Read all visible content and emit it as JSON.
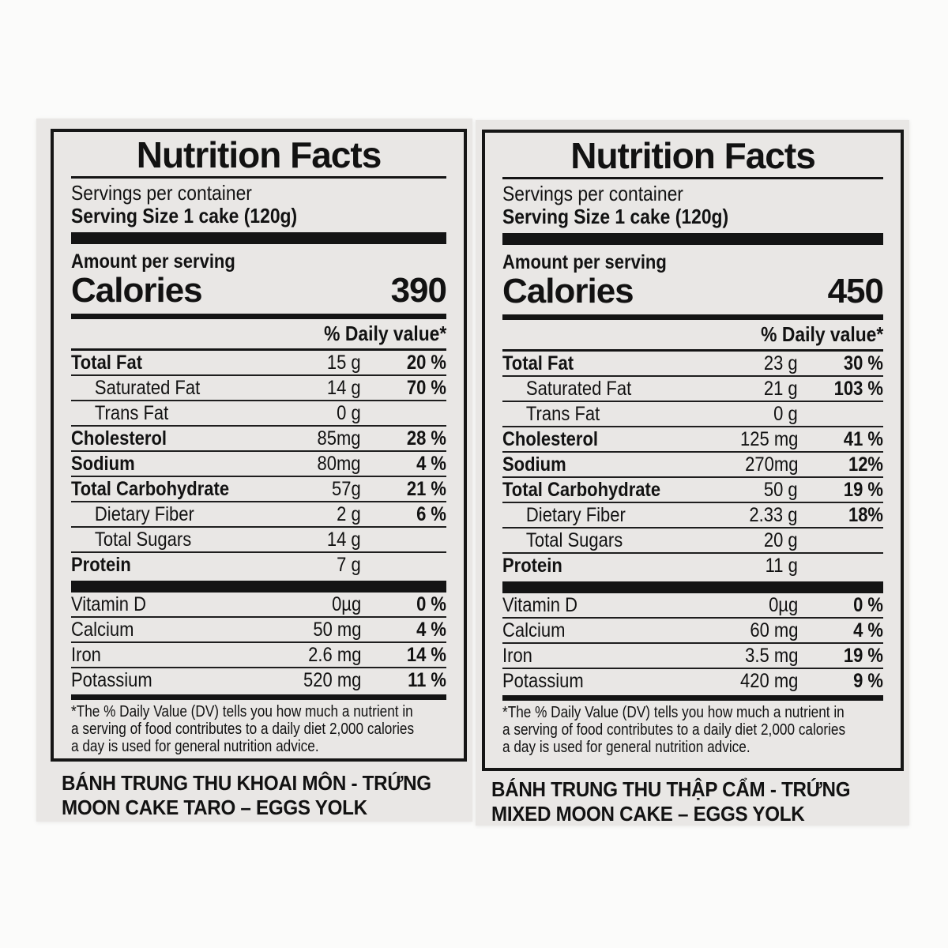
{
  "colors": {
    "page_background": "#fbfbfa",
    "label_background": "#e9e7e5",
    "ink": "#121212"
  },
  "labels": [
    {
      "title": "Nutrition Facts",
      "servings_per_container": "Servings per container",
      "serving_size": "Serving Size 1 cake (120g)",
      "amount_per_serving": "Amount per serving",
      "calories_label": "Calories",
      "calories_value": "390",
      "daily_value_header": "% Daily value*",
      "nutrients": [
        {
          "name": "Total Fat",
          "amount": "15 g",
          "dv": "20 %"
        },
        {
          "name": "Saturated Fat",
          "amount": "14 g",
          "dv": "70 %"
        },
        {
          "name": "Trans Fat",
          "amount": "0 g",
          "dv": ""
        },
        {
          "name": "Cholesterol",
          "amount": "85mg",
          "dv": "28 %"
        },
        {
          "name": "Sodium",
          "amount": "80mg",
          "dv": "4 %"
        },
        {
          "name": "Total Carbohydrate",
          "amount": "57g",
          "dv": "21 %"
        },
        {
          "name": "Dietary Fiber",
          "amount": "2 g",
          "dv": "6 %"
        },
        {
          "name": "Total Sugars",
          "amount": "14 g",
          "dv": ""
        },
        {
          "name": "Protein",
          "amount": "7 g",
          "dv": ""
        }
      ],
      "micronutrients": [
        {
          "name": "Vitamin D",
          "amount": "0µg",
          "dv": "0 %"
        },
        {
          "name": "Calcium",
          "amount": "50 mg",
          "dv": "4 %"
        },
        {
          "name": "Iron",
          "amount": "2.6 mg",
          "dv": "14 %"
        },
        {
          "name": "Potassium",
          "amount": "520 mg",
          "dv": "11 %"
        }
      ],
      "footnote_lines": [
        "*The % Daily Value (DV) tells you how much a nutrient in",
        "a serving of food contributes to a daily diet 2,000 calories",
        "a day is used for general nutrition advice."
      ],
      "product_name_vi": "BÁNH TRUNG THU KHOAI MÔN - TRỨNG",
      "product_name_en": "MOON CAKE TARO – EGGS YOLK"
    },
    {
      "title": "Nutrition Facts",
      "servings_per_container": "Servings per container",
      "serving_size": "Serving Size 1 cake (120g)",
      "amount_per_serving": "Amount per serving",
      "calories_label": "Calories",
      "calories_value": "450",
      "daily_value_header": "% Daily value*",
      "nutrients": [
        {
          "name": "Total Fat",
          "amount": "23 g",
          "dv": "30 %"
        },
        {
          "name": "Saturated Fat",
          "amount": "21 g",
          "dv": "103 %"
        },
        {
          "name": "Trans Fat",
          "amount": "0 g",
          "dv": ""
        },
        {
          "name": "Cholesterol",
          "amount": "125 mg",
          "dv": "41 %"
        },
        {
          "name": "Sodium",
          "amount": "270mg",
          "dv": "12%"
        },
        {
          "name": "Total Carbohydrate",
          "amount": "50 g",
          "dv": "19 %"
        },
        {
          "name": "Dietary Fiber",
          "amount": "2.33 g",
          "dv": "18%"
        },
        {
          "name": "Total Sugars",
          "amount": "20 g",
          "dv": ""
        },
        {
          "name": "Protein",
          "amount": "11 g",
          "dv": ""
        }
      ],
      "micronutrients": [
        {
          "name": "Vitamin D",
          "amount": "0µg",
          "dv": "0 %"
        },
        {
          "name": "Calcium",
          "amount": "60 mg",
          "dv": "4 %"
        },
        {
          "name": "Iron",
          "amount": "3.5 mg",
          "dv": "19 %"
        },
        {
          "name": "Potassium",
          "amount": "420 mg",
          "dv": "9 %"
        }
      ],
      "footnote_lines": [
        "*The % Daily Value (DV) tells you how much a nutrient in",
        "a serving of food contributes to a daily diet 2,000 calories",
        "a day is used for general nutrition advice."
      ],
      "product_name_vi": "BÁNH TRUNG THU THẬP CẨM - TRỨNG",
      "product_name_en": "MIXED MOON CAKE – EGGS YOLK"
    }
  ]
}
